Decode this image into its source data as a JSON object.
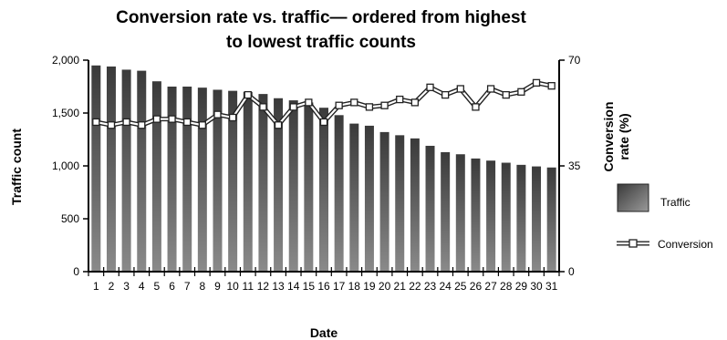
{
  "chart_data": {
    "type": "bar",
    "title_lines": [
      "Conversion rate vs. traffic— ordered from highest",
      "to lowest traffic counts"
    ],
    "xlabel": "Date",
    "ylabel_left": "Traffic count",
    "ylabel_right_lines": [
      "Conversion",
      "rate (%)"
    ],
    "ylim_left": [
      0,
      2000
    ],
    "yticks_left": [
      "0",
      "500",
      "1,000",
      "1,500",
      "2,000"
    ],
    "ylim_right": [
      0,
      70
    ],
    "yticks_right": [
      "0",
      "35",
      "70"
    ],
    "categories": [
      "1",
      "2",
      "3",
      "4",
      "5",
      "6",
      "7",
      "8",
      "9",
      "10",
      "11",
      "12",
      "13",
      "14",
      "15",
      "16",
      "17",
      "18",
      "19",
      "20",
      "21",
      "22",
      "23",
      "24",
      "25",
      "26",
      "27",
      "28",
      "29",
      "30",
      "31"
    ],
    "series": [
      {
        "name": "Traffic",
        "type": "bar",
        "axis": "left",
        "color": "#555555",
        "values": [
          1950,
          1940,
          1910,
          1900,
          1800,
          1750,
          1750,
          1740,
          1720,
          1710,
          1700,
          1680,
          1640,
          1620,
          1600,
          1550,
          1480,
          1400,
          1380,
          1320,
          1290,
          1260,
          1190,
          1130,
          1110,
          1070,
          1050,
          1030,
          1010,
          995,
          985
        ]
      },
      {
        "name": "Conversion",
        "type": "line",
        "axis": "right",
        "color": "#222222",
        "values": [
          49.5,
          48.5,
          49.5,
          48.5,
          50.5,
          50.5,
          49.5,
          48.5,
          52,
          51,
          58.5,
          54.5,
          48.5,
          54.5,
          56,
          49.5,
          55,
          56,
          54.5,
          55,
          57,
          56,
          61,
          58.5,
          60.5,
          54.5,
          60.5,
          58.5,
          59.5,
          62.5,
          61.5
        ]
      }
    ],
    "grid": false,
    "legend_position": "right"
  }
}
